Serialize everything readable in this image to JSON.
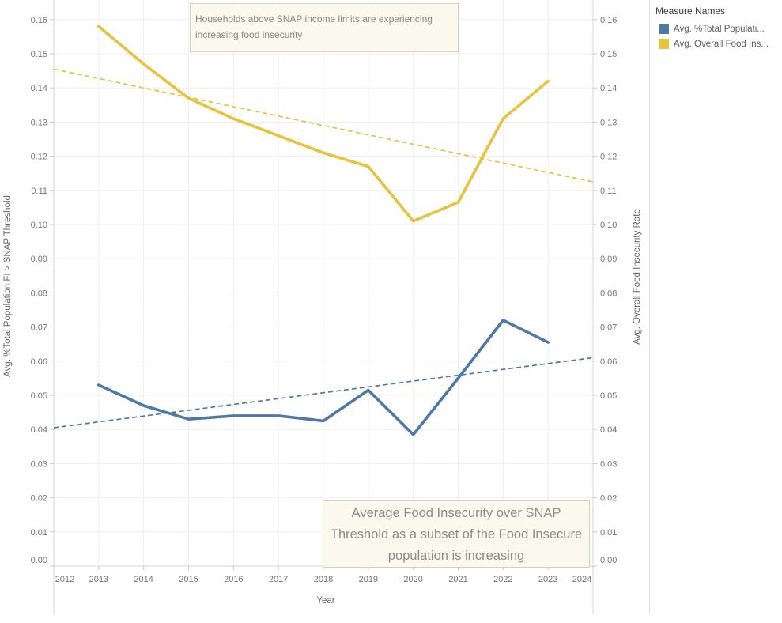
{
  "annotations": {
    "top": "Households above SNAP income limits are experiencing increasing food insecurity",
    "bottom": "Average Food Insecurity over SNAP Threshold as a subset of the Food Insecure population is increasing"
  },
  "legend": {
    "title": "Measure Names",
    "items": [
      {
        "label": "Avg. %Total Populati...",
        "color": "#4e79a7"
      },
      {
        "label": "Avg. Overall Food Ins...",
        "color": "#e8c23c"
      }
    ]
  },
  "chart_data": {
    "type": "line",
    "xlabel": "Year",
    "ylabel_left": "Avg. %Total Population FI > SNAP Threshold",
    "ylabel_right": "Avg. Overall Food Insecurity Rate",
    "xlim": [
      2012,
      2024
    ],
    "ylim": [
      0,
      0.1658
    ],
    "grid": true,
    "legend_position": "right",
    "xticks": [
      "2012",
      "2013",
      "2014",
      "2015",
      "2016",
      "2017",
      "2018",
      "2019",
      "2020",
      "2021",
      "2022",
      "2023",
      "2024"
    ],
    "yticks": [
      "0.00",
      "0.01",
      "0.02",
      "0.03",
      "0.04",
      "0.05",
      "0.06",
      "0.07",
      "0.08",
      "0.09",
      "0.10",
      "0.11",
      "0.12",
      "0.13",
      "0.14",
      "0.15",
      "0.16"
    ],
    "x": [
      2013,
      2014,
      2015,
      2016,
      2017,
      2018,
      2019,
      2020,
      2021,
      2022,
      2023
    ],
    "series": [
      {
        "name": "Avg. %Total Population FI > SNAP Threshold",
        "color": "#4e79a7",
        "values": [
          0.053,
          0.047,
          0.043,
          0.044,
          0.044,
          0.0425,
          0.0515,
          0.0385,
          0.055,
          0.072,
          0.0655
        ],
        "trend": {
          "x_start": 2012,
          "y_start": 0.0405,
          "x_end": 2024,
          "y_end": 0.061
        }
      },
      {
        "name": "Avg. Overall Food Insecurity Rate",
        "color": "#e8c23c",
        "values": [
          0.158,
          0.147,
          0.137,
          0.131,
          0.126,
          0.121,
          0.117,
          0.101,
          0.1065,
          0.131,
          0.142
        ],
        "trend": {
          "x_start": 2012,
          "y_start": 0.1455,
          "x_end": 2024,
          "y_end": 0.1125
        }
      }
    ],
    "colors": {
      "gridline": "#efefef",
      "axis_line": "#d5d5d5",
      "tick": "#c9c9c9",
      "tick_label": "#767676",
      "axis_title": "#666666"
    }
  }
}
